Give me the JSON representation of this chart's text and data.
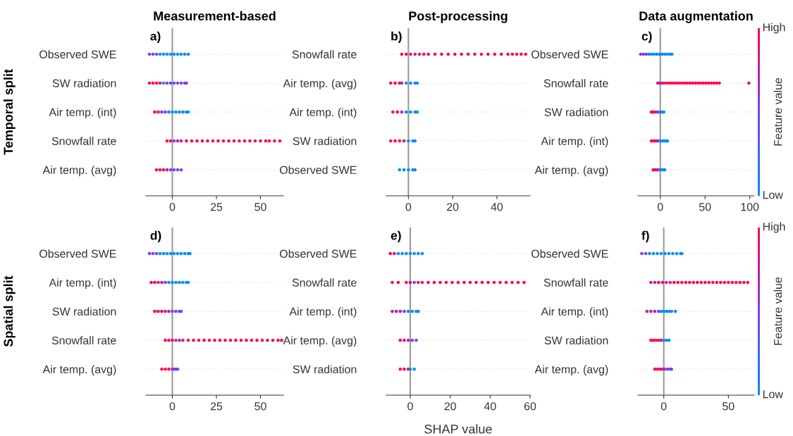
{
  "chart_data": [
    {
      "type": "scatter",
      "orientation": "horizontal",
      "title": "Measurement-based",
      "ylabel": "Temporal split",
      "annotations": [
        "a)"
      ],
      "categories": [
        "Observed SWE",
        "SW radiation",
        "Air temp. (int)",
        "Snowfall rate",
        "Air temp. (avg)"
      ],
      "xlim": [
        -15,
        63
      ],
      "xticks": [
        0,
        25,
        50
      ],
      "grid": "y",
      "marker": "circle",
      "ref_lines": [
        {
          "axis": "x",
          "value": 0,
          "color": "#999999"
        }
      ],
      "series": [
        {
          "x": [
            "Observed SWE",
            "Observed SWE",
            "Observed SWE",
            "Observed SWE",
            "Observed SWE",
            "Observed SWE",
            "Observed SWE",
            "Observed SWE",
            "Observed SWE",
            "Observed SWE",
            "Observed SWE",
            "Observed SWE"
          ],
          "values": [
            -13,
            -11,
            -9,
            -7,
            -5,
            -3,
            -1,
            1,
            3,
            5,
            7,
            9
          ],
          "colors": [
            "#7a3ff0",
            "#7a3ff0",
            "#7a3ff0",
            "#008bfb",
            "#008bfb",
            "#008bfb",
            "#008bfb",
            "#008bfb",
            "#008bfb",
            "#008bfb",
            "#008bfb",
            "#008bfb"
          ]
        },
        {
          "x": [
            "SW radiation",
            "SW radiation",
            "SW radiation",
            "SW radiation",
            "SW radiation",
            "SW radiation",
            "SW radiation",
            "SW radiation",
            "SW radiation",
            "SW radiation",
            "SW radiation",
            "SW radiation"
          ],
          "values": [
            -13,
            -11,
            -9,
            -7,
            -5,
            -3,
            -1,
            1,
            3,
            5,
            7,
            8
          ],
          "colors": [
            "#ff0052",
            "#ff0052",
            "#ff0052",
            "#ff0052",
            "#008bfb",
            "#7a3ff0",
            "#7a3ff0",
            "#7a3ff0",
            "#7a3ff0",
            "#7a3ff0",
            "#7a3ff0",
            "#7a3ff0"
          ]
        },
        {
          "x": [
            "Air temp. (int)",
            "Air temp. (int)",
            "Air temp. (int)",
            "Air temp. (int)",
            "Air temp. (int)",
            "Air temp. (int)",
            "Air temp. (int)",
            "Air temp. (int)",
            "Air temp. (int)",
            "Air temp. (int)",
            "Air temp. (int)"
          ],
          "values": [
            -10,
            -8,
            -6,
            -4,
            -2,
            0,
            2,
            4,
            6,
            8,
            9
          ],
          "colors": [
            "#ff0052",
            "#ff0052",
            "#c0209f",
            "#7a3ff0",
            "#008bfb",
            "#008bfb",
            "#008bfb",
            "#008bfb",
            "#008bfb",
            "#008bfb",
            "#008bfb"
          ]
        },
        {
          "x": [
            "Snowfall rate",
            "Snowfall rate",
            "Snowfall rate",
            "Snowfall rate",
            "Snowfall rate",
            "Snowfall rate",
            "Snowfall rate",
            "Snowfall rate",
            "Snowfall rate",
            "Snowfall rate",
            "Snowfall rate",
            "Snowfall rate",
            "Snowfall rate",
            "Snowfall rate",
            "Snowfall rate",
            "Snowfall rate",
            "Snowfall rate",
            "Snowfall rate",
            "Snowfall rate",
            "Snowfall rate",
            "Snowfall rate",
            "Snowfall rate",
            "Snowfall rate",
            "Snowfall rate"
          ],
          "values": [
            -3,
            -1,
            1,
            3,
            5,
            8,
            11,
            14,
            17,
            20,
            23,
            26,
            29,
            32,
            35,
            38,
            41,
            44,
            47,
            50,
            53,
            55,
            58,
            61
          ],
          "colors": [
            "#ff0052",
            "#ff0052",
            "#7a3ff0",
            "#c0209f",
            "#c0209f",
            "#ff0052",
            "#ff0052",
            "#ff0052",
            "#ff0052",
            "#ff0052",
            "#ff0052",
            "#ff0052",
            "#ff0052",
            "#ff0052",
            "#ff0052",
            "#ff0052",
            "#ff0052",
            "#ff0052",
            "#ff0052",
            "#ff0052",
            "#ff0052",
            "#ff0052",
            "#ff0052",
            "#ff0052"
          ]
        },
        {
          "x": [
            "Air temp. (avg)",
            "Air temp. (avg)",
            "Air temp. (avg)",
            "Air temp. (avg)",
            "Air temp. (avg)",
            "Air temp. (avg)",
            "Air temp. (avg)",
            "Air temp. (avg)"
          ],
          "values": [
            -9,
            -7,
            -5,
            -3,
            -1,
            1,
            3,
            5
          ],
          "colors": [
            "#ff0052",
            "#ff0052",
            "#ff0052",
            "#c0209f",
            "#7a3ff0",
            "#7a3ff0",
            "#7a3ff0",
            "#7a3ff0"
          ]
        }
      ]
    },
    {
      "type": "scatter",
      "orientation": "horizontal",
      "title": "Post-processing",
      "annotations": [
        "b)"
      ],
      "categories": [
        "Snowfall rate",
        "Air temp. (avg)",
        "Air temp. (int)",
        "SW radiation",
        "Observed SWE"
      ],
      "xlim": [
        -10,
        55
      ],
      "xticks": [
        0,
        20,
        40
      ],
      "grid": "y",
      "marker": "circle",
      "ref_lines": [
        {
          "axis": "x",
          "value": 0,
          "color": "#999999"
        }
      ],
      "series": [
        {
          "x": [
            "Snowfall rate",
            "Snowfall rate",
            "Snowfall rate",
            "Snowfall rate",
            "Snowfall rate",
            "Snowfall rate",
            "Snowfall rate",
            "Snowfall rate",
            "Snowfall rate",
            "Snowfall rate",
            "Snowfall rate",
            "Snowfall rate",
            "Snowfall rate",
            "Snowfall rate",
            "Snowfall rate",
            "Snowfall rate",
            "Snowfall rate",
            "Snowfall rate",
            "Snowfall rate",
            "Snowfall rate",
            "Snowfall rate",
            "Snowfall rate",
            "Snowfall rate"
          ],
          "values": [
            -3,
            -1,
            1,
            3,
            5,
            7,
            9,
            12,
            15,
            18,
            21,
            24,
            27,
            30,
            33,
            36,
            39,
            42,
            45,
            47,
            49,
            51,
            53
          ],
          "colors": [
            "#ff0052",
            "#ff0052",
            "#c0209f",
            "#c0209f",
            "#c0209f",
            "#ff0052",
            "#ff0052",
            "#ff0052",
            "#ff0052",
            "#ff0052",
            "#ff0052",
            "#ff0052",
            "#ff0052",
            "#ff0052",
            "#ff0052",
            "#ff0052",
            "#ff0052",
            "#ff0052",
            "#ff0052",
            "#ff0052",
            "#ff0052",
            "#ff0052",
            "#ff0052"
          ]
        },
        {
          "x": [
            "Air temp. (avg)",
            "Air temp. (avg)",
            "Air temp. (avg)",
            "Air temp. (avg)",
            "Air temp. (avg)",
            "Air temp. (avg)",
            "Air temp. (avg)",
            "Air temp. (avg)"
          ],
          "values": [
            -8,
            -6,
            -4,
            -3,
            -1,
            1,
            3,
            4
          ],
          "colors": [
            "#ff0052",
            "#ff0052",
            "#ff0052",
            "#c0209f",
            "#008bfb",
            "#008bfb",
            "#008bfb",
            "#008bfb"
          ]
        },
        {
          "x": [
            "Air temp. (int)",
            "Air temp. (int)",
            "Air temp. (int)",
            "Air temp. (int)",
            "Air temp. (int)",
            "Air temp. (int)",
            "Air temp. (int)"
          ],
          "values": [
            -7,
            -5,
            -3,
            -1,
            1,
            3,
            4
          ],
          "colors": [
            "#ff0052",
            "#ff0052",
            "#c0209f",
            "#008bfb",
            "#008bfb",
            "#008bfb",
            "#008bfb"
          ]
        },
        {
          "x": [
            "SW radiation",
            "SW radiation",
            "SW radiation",
            "SW radiation",
            "SW radiation",
            "SW radiation",
            "SW radiation"
          ],
          "values": [
            -8,
            -6,
            -4,
            -2,
            0,
            2,
            3
          ],
          "colors": [
            "#ff0052",
            "#ff0052",
            "#ff0052",
            "#ff0052",
            "#008bfb",
            "#008bfb",
            "#008bfb"
          ]
        },
        {
          "x": [
            "Observed SWE",
            "Observed SWE",
            "Observed SWE",
            "Observed SWE",
            "Observed SWE"
          ],
          "values": [
            -4,
            -2,
            0,
            2,
            3
          ],
          "colors": [
            "#008bfb",
            "#008bfb",
            "#008bfb",
            "#008bfb",
            "#008bfb"
          ]
        }
      ]
    },
    {
      "type": "scatter",
      "orientation": "horizontal",
      "title": "Data augmentation",
      "annotations": [
        "c)"
      ],
      "categories": [
        "Observed SWE",
        "Snowfall rate",
        "SW radiation",
        "Air temp. (int)",
        "Air temp. (avg)"
      ],
      "xlim": [
        -25,
        105
      ],
      "xticks": [
        0,
        50,
        100
      ],
      "grid": "y",
      "marker": "circle",
      "ref_lines": [
        {
          "axis": "x",
          "value": 0,
          "color": "#999999"
        }
      ],
      "cticks": [
        "Low",
        "High"
      ],
      "clabel": "Feature value",
      "series": [
        {
          "x": [
            "Observed SWE",
            "Observed SWE",
            "Observed SWE",
            "Observed SWE",
            "Observed SWE",
            "Observed SWE",
            "Observed SWE",
            "Observed SWE",
            "Observed SWE",
            "Observed SWE",
            "Observed SWE",
            "Observed SWE",
            "Observed SWE"
          ],
          "values": [
            -22,
            -19,
            -16,
            -13,
            -10,
            -7,
            -4,
            -1,
            2,
            5,
            8,
            11,
            13
          ],
          "colors": [
            "#7a3ff0",
            "#7a3ff0",
            "#7a3ff0",
            "#008bfb",
            "#008bfb",
            "#008bfb",
            "#008bfb",
            "#008bfb",
            "#008bfb",
            "#008bfb",
            "#008bfb",
            "#008bfb",
            "#008bfb"
          ]
        },
        {
          "x": [
            "Snowfall rate",
            "Snowfall rate",
            "Snowfall rate",
            "Snowfall rate",
            "Snowfall rate",
            "Snowfall rate",
            "Snowfall rate",
            "Snowfall rate",
            "Snowfall rate",
            "Snowfall rate",
            "Snowfall rate",
            "Snowfall rate",
            "Snowfall rate",
            "Snowfall rate",
            "Snowfall rate",
            "Snowfall rate",
            "Snowfall rate",
            "Snowfall rate",
            "Snowfall rate",
            "Snowfall rate",
            "Snowfall rate",
            "Snowfall rate",
            "Snowfall rate",
            "Snowfall rate",
            "Snowfall rate",
            "Snowfall rate"
          ],
          "values": [
            -3,
            -1,
            1,
            3,
            6,
            9,
            12,
            15,
            18,
            21,
            24,
            27,
            30,
            33,
            36,
            39,
            42,
            45,
            48,
            51,
            54,
            57,
            60,
            63,
            66,
            99
          ],
          "colors": [
            "#7a3ff0",
            "#ff0052",
            "#c0209f",
            "#c0209f",
            "#ff0052",
            "#ff0052",
            "#ff0052",
            "#ff0052",
            "#ff0052",
            "#ff0052",
            "#ff0052",
            "#ff0052",
            "#ff0052",
            "#ff0052",
            "#ff0052",
            "#ff0052",
            "#ff0052",
            "#ff0052",
            "#ff0052",
            "#ff0052",
            "#ff0052",
            "#ff0052",
            "#ff0052",
            "#ff0052",
            "#ff0052",
            "#ff0052"
          ]
        },
        {
          "x": [
            "SW radiation",
            "SW radiation",
            "SW radiation",
            "SW radiation",
            "SW radiation",
            "SW radiation",
            "SW radiation",
            "SW radiation"
          ],
          "values": [
            -10,
            -8,
            -6,
            -4,
            -2,
            0,
            2,
            4
          ],
          "colors": [
            "#ff0052",
            "#ff0052",
            "#ff0052",
            "#ff0052",
            "#7a3ff0",
            "#008bfb",
            "#008bfb",
            "#008bfb"
          ]
        },
        {
          "x": [
            "Air temp. (int)",
            "Air temp. (int)",
            "Air temp. (int)",
            "Air temp. (int)",
            "Air temp. (int)",
            "Air temp. (int)",
            "Air temp. (int)",
            "Air temp. (int)",
            "Air temp. (int)",
            "Air temp. (int)"
          ],
          "values": [
            -10,
            -8,
            -6,
            -4,
            -2,
            0,
            2,
            4,
            6,
            8
          ],
          "colors": [
            "#ff0052",
            "#ff0052",
            "#ff0052",
            "#ff0052",
            "#7a3ff0",
            "#008bfb",
            "#008bfb",
            "#008bfb",
            "#008bfb",
            "#008bfb"
          ]
        },
        {
          "x": [
            "Air temp. (avg)",
            "Air temp. (avg)",
            "Air temp. (avg)",
            "Air temp. (avg)",
            "Air temp. (avg)",
            "Air temp. (avg)",
            "Air temp. (avg)",
            "Air temp. (avg)"
          ],
          "values": [
            -8,
            -6,
            -4,
            -2,
            0,
            2,
            4,
            5
          ],
          "colors": [
            "#ff0052",
            "#ff0052",
            "#ff0052",
            "#c0209f",
            "#008bfb",
            "#008bfb",
            "#008bfb",
            "#008bfb"
          ]
        }
      ]
    },
    {
      "type": "scatter",
      "orientation": "horizontal",
      "ylabel": "Spatial split",
      "annotations": [
        "d)"
      ],
      "categories": [
        "Observed SWE",
        "Air temp. (int)",
        "SW radiation",
        "Snowfall rate",
        "Air temp. (avg)"
      ],
      "xlim": [
        -15,
        63
      ],
      "xticks": [
        0,
        25,
        50
      ],
      "grid": "y",
      "marker": "circle",
      "ref_lines": [
        {
          "axis": "x",
          "value": 0,
          "color": "#999999"
        }
      ],
      "series": [
        {
          "x": [
            "Observed SWE",
            "Observed SWE",
            "Observed SWE",
            "Observed SWE",
            "Observed SWE",
            "Observed SWE",
            "Observed SWE",
            "Observed SWE",
            "Observed SWE",
            "Observed SWE",
            "Observed SWE",
            "Observed SWE",
            "Observed SWE"
          ],
          "values": [
            -13,
            -11,
            -9,
            -7,
            -5,
            -3,
            -1,
            1,
            3,
            5,
            7,
            9,
            10
          ],
          "colors": [
            "#7a3ff0",
            "#7a3ff0",
            "#7a3ff0",
            "#008bfb",
            "#008bfb",
            "#008bfb",
            "#008bfb",
            "#008bfb",
            "#008bfb",
            "#008bfb",
            "#008bfb",
            "#008bfb",
            "#008bfb"
          ]
        },
        {
          "x": [
            "Air temp. (int)",
            "Air temp. (int)",
            "Air temp. (int)",
            "Air temp. (int)",
            "Air temp. (int)",
            "Air temp. (int)",
            "Air temp. (int)",
            "Air temp. (int)",
            "Air temp. (int)",
            "Air temp. (int)",
            "Air temp. (int)",
            "Air temp. (int)"
          ],
          "values": [
            -12,
            -10,
            -8,
            -6,
            -4,
            -2,
            0,
            2,
            4,
            6,
            8,
            9
          ],
          "colors": [
            "#ff0052",
            "#ff0052",
            "#c0209f",
            "#c0209f",
            "#7a3ff0",
            "#008bfb",
            "#008bfb",
            "#008bfb",
            "#008bfb",
            "#008bfb",
            "#008bfb",
            "#008bfb"
          ]
        },
        {
          "x": [
            "SW radiation",
            "SW radiation",
            "SW radiation",
            "SW radiation",
            "SW radiation",
            "SW radiation",
            "SW radiation",
            "SW radiation",
            "SW radiation"
          ],
          "values": [
            -10,
            -8,
            -6,
            -4,
            -2,
            0,
            2,
            4,
            5
          ],
          "colors": [
            "#ff0052",
            "#ff0052",
            "#ff0052",
            "#c0209f",
            "#c0209f",
            "#7a3ff0",
            "#7a3ff0",
            "#7a3ff0",
            "#7a3ff0"
          ]
        },
        {
          "x": [
            "Snowfall rate",
            "Snowfall rate",
            "Snowfall rate",
            "Snowfall rate",
            "Snowfall rate",
            "Snowfall rate",
            "Snowfall rate",
            "Snowfall rate",
            "Snowfall rate",
            "Snowfall rate",
            "Snowfall rate",
            "Snowfall rate",
            "Snowfall rate",
            "Snowfall rate",
            "Snowfall rate",
            "Snowfall rate",
            "Snowfall rate",
            "Snowfall rate",
            "Snowfall rate",
            "Snowfall rate",
            "Snowfall rate",
            "Snowfall rate",
            "Snowfall rate",
            "Snowfall rate",
            "Snowfall rate"
          ],
          "values": [
            -4,
            -2,
            0,
            2,
            4,
            6,
            9,
            12,
            15,
            18,
            21,
            24,
            27,
            30,
            33,
            36,
            39,
            42,
            45,
            48,
            51,
            54,
            57,
            60,
            62
          ],
          "colors": [
            "#ff0052",
            "#ff0052",
            "#ff0052",
            "#7a3ff0",
            "#c0209f",
            "#c0209f",
            "#ff0052",
            "#ff0052",
            "#ff0052",
            "#ff0052",
            "#ff0052",
            "#ff0052",
            "#ff0052",
            "#ff0052",
            "#ff0052",
            "#ff0052",
            "#ff0052",
            "#ff0052",
            "#ff0052",
            "#ff0052",
            "#ff0052",
            "#ff0052",
            "#ff0052",
            "#ff0052",
            "#ff0052"
          ]
        },
        {
          "x": [
            "Air temp. (avg)",
            "Air temp. (avg)",
            "Air temp. (avg)",
            "Air temp. (avg)",
            "Air temp. (avg)",
            "Air temp. (avg)",
            "Air temp. (avg)"
          ],
          "values": [
            -6,
            -4,
            -2,
            0,
            1,
            2,
            3
          ],
          "colors": [
            "#ff0052",
            "#ff0052",
            "#ff0052",
            "#7a3ff0",
            "#7a3ff0",
            "#7a3ff0",
            "#7a3ff0"
          ]
        }
      ]
    },
    {
      "type": "scatter",
      "orientation": "horizontal",
      "xlabel": "SHAP value",
      "annotations": [
        "e)"
      ],
      "categories": [
        "Observed SWE",
        "Snowfall rate",
        "Air temp. (int)",
        "Air temp. (avg)",
        "SW radiation"
      ],
      "xlim": [
        -12,
        60
      ],
      "xticks": [
        0,
        20,
        40,
        60
      ],
      "grid": "y",
      "marker": "circle",
      "ref_lines": [
        {
          "axis": "x",
          "value": 0,
          "color": "#999999"
        }
      ],
      "series": [
        {
          "x": [
            "Observed SWE",
            "Observed SWE",
            "Observed SWE",
            "Observed SWE",
            "Observed SWE",
            "Observed SWE",
            "Observed SWE",
            "Observed SWE",
            "Observed SWE"
          ],
          "values": [
            -10,
            -8,
            -6,
            -4,
            -2,
            0,
            2,
            4,
            6
          ],
          "colors": [
            "#ff0052",
            "#ff0052",
            "#008bfb",
            "#008bfb",
            "#008bfb",
            "#008bfb",
            "#008bfb",
            "#008bfb",
            "#008bfb"
          ]
        },
        {
          "x": [
            "Snowfall rate",
            "Snowfall rate",
            "Snowfall rate",
            "Snowfall rate",
            "Snowfall rate",
            "Snowfall rate",
            "Snowfall rate",
            "Snowfall rate",
            "Snowfall rate",
            "Snowfall rate",
            "Snowfall rate",
            "Snowfall rate",
            "Snowfall rate",
            "Snowfall rate",
            "Snowfall rate",
            "Snowfall rate",
            "Snowfall rate",
            "Snowfall rate",
            "Snowfall rate",
            "Snowfall rate",
            "Snowfall rate",
            "Snowfall rate",
            "Snowfall rate",
            "Snowfall rate"
          ],
          "values": [
            -9,
            -6,
            -2,
            0,
            2,
            4,
            6,
            9,
            12,
            15,
            18,
            21,
            24,
            27,
            30,
            33,
            36,
            39,
            42,
            45,
            48,
            51,
            54,
            57
          ],
          "colors": [
            "#ff0052",
            "#ff0052",
            "#ff0052",
            "#ff0052",
            "#7a3ff0",
            "#c0209f",
            "#c0209f",
            "#ff0052",
            "#ff0052",
            "#ff0052",
            "#ff0052",
            "#ff0052",
            "#ff0052",
            "#ff0052",
            "#ff0052",
            "#ff0052",
            "#ff0052",
            "#ff0052",
            "#ff0052",
            "#ff0052",
            "#ff0052",
            "#ff0052",
            "#ff0052",
            "#ff0052"
          ]
        },
        {
          "x": [
            "Air temp. (int)",
            "Air temp. (int)",
            "Air temp. (int)",
            "Air temp. (int)",
            "Air temp. (int)",
            "Air temp. (int)",
            "Air temp. (int)",
            "Air temp. (int)"
          ],
          "values": [
            -9,
            -7,
            -5,
            -3,
            -1,
            1,
            3,
            4
          ],
          "colors": [
            "#c0209f",
            "#c0209f",
            "#c0209f",
            "#7a3ff0",
            "#008bfb",
            "#008bfb",
            "#008bfb",
            "#008bfb"
          ]
        },
        {
          "x": [
            "Air temp. (avg)",
            "Air temp. (avg)",
            "Air temp. (avg)",
            "Air temp. (avg)",
            "Air temp. (avg)"
          ],
          "values": [
            -5,
            -3,
            -1,
            1,
            3
          ],
          "colors": [
            "#ff0052",
            "#ff0052",
            "#c0209f",
            "#7a3ff0",
            "#7a3ff0"
          ]
        },
        {
          "x": [
            "SW radiation",
            "SW radiation",
            "SW radiation",
            "SW radiation",
            "SW radiation"
          ],
          "values": [
            -5,
            -3,
            -1,
            0,
            2
          ],
          "colors": [
            "#ff0052",
            "#ff0052",
            "#ff0052",
            "#008bfb",
            "#008bfb"
          ]
        }
      ]
    },
    {
      "type": "scatter",
      "orientation": "horizontal",
      "annotations": [
        "f)"
      ],
      "categories": [
        "Observed SWE",
        "Snowfall rate",
        "Air temp. (int)",
        "SW radiation",
        "Air temp. (avg)"
      ],
      "xlim": [
        -20,
        70
      ],
      "xticks": [
        0,
        50
      ],
      "grid": "y",
      "marker": "circle",
      "ref_lines": [
        {
          "axis": "x",
          "value": 0,
          "color": "#999999"
        }
      ],
      "cticks": [
        "Low",
        "High"
      ],
      "clabel": "Feature value",
      "series": [
        {
          "x": [
            "Observed SWE",
            "Observed SWE",
            "Observed SWE",
            "Observed SWE",
            "Observed SWE",
            "Observed SWE",
            "Observed SWE",
            "Observed SWE",
            "Observed SWE",
            "Observed SWE",
            "Observed SWE",
            "Observed SWE"
          ],
          "values": [
            -17,
            -14,
            -11,
            -8,
            -5,
            -2,
            1,
            4,
            7,
            10,
            13,
            14
          ],
          "colors": [
            "#7a3ff0",
            "#7a3ff0",
            "#008bfb",
            "#008bfb",
            "#008bfb",
            "#008bfb",
            "#008bfb",
            "#008bfb",
            "#008bfb",
            "#008bfb",
            "#008bfb",
            "#008bfb"
          ]
        },
        {
          "x": [
            "Snowfall rate",
            "Snowfall rate",
            "Snowfall rate",
            "Snowfall rate",
            "Snowfall rate",
            "Snowfall rate",
            "Snowfall rate",
            "Snowfall rate",
            "Snowfall rate",
            "Snowfall rate",
            "Snowfall rate",
            "Snowfall rate",
            "Snowfall rate",
            "Snowfall rate",
            "Snowfall rate",
            "Snowfall rate",
            "Snowfall rate",
            "Snowfall rate",
            "Snowfall rate",
            "Snowfall rate",
            "Snowfall rate",
            "Snowfall rate",
            "Snowfall rate",
            "Snowfall rate",
            "Snowfall rate",
            "Snowfall rate"
          ],
          "values": [
            -10,
            -7,
            -4,
            -1,
            2,
            5,
            8,
            11,
            14,
            17,
            20,
            23,
            26,
            29,
            32,
            35,
            38,
            41,
            44,
            47,
            50,
            53,
            56,
            59,
            62,
            65
          ],
          "colors": [
            "#c0209f",
            "#c0209f",
            "#ff0052",
            "#ff0052",
            "#c0209f",
            "#c0209f",
            "#ff0052",
            "#ff0052",
            "#ff0052",
            "#ff0052",
            "#ff0052",
            "#ff0052",
            "#ff0052",
            "#ff0052",
            "#ff0052",
            "#ff0052",
            "#ff0052",
            "#ff0052",
            "#ff0052",
            "#ff0052",
            "#ff0052",
            "#ff0052",
            "#ff0052",
            "#ff0052",
            "#ff0052",
            "#ff0052"
          ]
        },
        {
          "x": [
            "Air temp. (int)",
            "Air temp. (int)",
            "Air temp. (int)",
            "Air temp. (int)",
            "Air temp. (int)",
            "Air temp. (int)",
            "Air temp. (int)",
            "Air temp. (int)",
            "Air temp. (int)",
            "Air temp. (int)"
          ],
          "values": [
            -13,
            -10,
            -7,
            -4,
            -2,
            0,
            2,
            4,
            6,
            9
          ],
          "colors": [
            "#c0209f",
            "#c0209f",
            "#c0209f",
            "#7a3ff0",
            "#008bfb",
            "#008bfb",
            "#008bfb",
            "#008bfb",
            "#008bfb",
            "#008bfb"
          ]
        },
        {
          "x": [
            "SW radiation",
            "SW radiation",
            "SW radiation",
            "SW radiation",
            "SW radiation",
            "SW radiation",
            "SW radiation",
            "SW radiation"
          ],
          "values": [
            -10,
            -8,
            -6,
            -4,
            -2,
            0,
            2,
            4
          ],
          "colors": [
            "#ff0052",
            "#ff0052",
            "#ff0052",
            "#ff0052",
            "#ff0052",
            "#008bfb",
            "#008bfb",
            "#008bfb"
          ]
        },
        {
          "x": [
            "Air temp. (avg)",
            "Air temp. (avg)",
            "Air temp. (avg)",
            "Air temp. (avg)",
            "Air temp. (avg)",
            "Air temp. (avg)",
            "Air temp. (avg)",
            "Air temp. (avg)"
          ],
          "values": [
            -7,
            -5,
            -3,
            -1,
            1,
            3,
            5,
            6
          ],
          "colors": [
            "#ff0052",
            "#ff0052",
            "#ff0052",
            "#ff0052",
            "#7a3ff0",
            "#7a3ff0",
            "#7a3ff0",
            "#7a3ff0"
          ]
        }
      ]
    }
  ]
}
